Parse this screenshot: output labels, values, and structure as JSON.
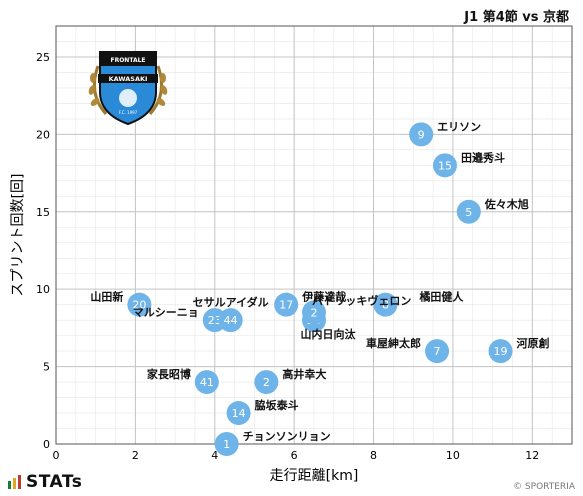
{
  "header": {
    "title": "J1 第4節 vs 京都"
  },
  "footer": {
    "brand": "STATs",
    "copyright": "© SPORTERIA"
  },
  "emblem": {
    "name_top": "FRONTALE",
    "name_bottom": "KAWASAKI",
    "motto": "F.C. 1997"
  },
  "chart_data": {
    "type": "scatter",
    "xlabel": "走行距離[km]",
    "ylabel": "スプリント回数[回]",
    "xlim": [
      0,
      13
    ],
    "ylim": [
      0,
      27
    ],
    "x_ticks": [
      0,
      2,
      4,
      6,
      8,
      10,
      12
    ],
    "y_ticks": [
      0,
      5,
      10,
      15,
      20,
      25
    ],
    "grid": true,
    "colors": {
      "marker": "#6eb4e8",
      "marker_text": "#ffffff",
      "grid": "#cccccc"
    },
    "points": [
      {
        "num": "9",
        "name": "エリソン",
        "x": 9.2,
        "y": 20,
        "label_pos": "right"
      },
      {
        "num": "15",
        "name": "田邉秀斗",
        "x": 9.8,
        "y": 18,
        "label_pos": "right"
      },
      {
        "num": "5",
        "name": "佐々木旭",
        "x": 10.4,
        "y": 15,
        "label_pos": "right"
      },
      {
        "num": "20",
        "name": "山田新",
        "x": 2.1,
        "y": 9,
        "label_pos": "left"
      },
      {
        "num": "17",
        "name": "伊藤達哉",
        "x": 5.8,
        "y": 9,
        "label_pos": "right"
      },
      {
        "num": "8",
        "name": "橘田健人",
        "x": 8.3,
        "y": 9,
        "label_pos": "farright"
      },
      {
        "num": "23",
        "name": "マルシーニョ",
        "x": 4.0,
        "y": 8,
        "label_pos": "left"
      },
      {
        "num": "44",
        "name": "セサルアイダル",
        "x": 4.4,
        "y": 8,
        "label_pos": "up"
      },
      {
        "num": "26",
        "name": "山内日向汰",
        "x": 6.5,
        "y": 8,
        "label_pos": "down"
      },
      {
        "num": "2",
        "name": "パトリッキヴェロン",
        "x": 6.5,
        "y": 8.5,
        "label_pos": "hidden"
      },
      {
        "num": "7",
        "name": "車屋紳太郎",
        "x": 9.6,
        "y": 6,
        "label_pos": "left"
      },
      {
        "num": "19",
        "name": "河原創",
        "x": 11.2,
        "y": 6,
        "label_pos": "right"
      },
      {
        "num": "41",
        "name": "家長昭博",
        "x": 3.8,
        "y": 4,
        "label_pos": "left"
      },
      {
        "num": "2",
        "name": "高井幸大",
        "x": 5.3,
        "y": 4,
        "label_pos": "right"
      },
      {
        "num": "14",
        "name": "脇坂泰斗",
        "x": 4.6,
        "y": 2,
        "label_pos": "right"
      },
      {
        "num": "1",
        "name": "チョンソンリョン",
        "x": 4.3,
        "y": 0,
        "label_pos": "right"
      }
    ]
  }
}
